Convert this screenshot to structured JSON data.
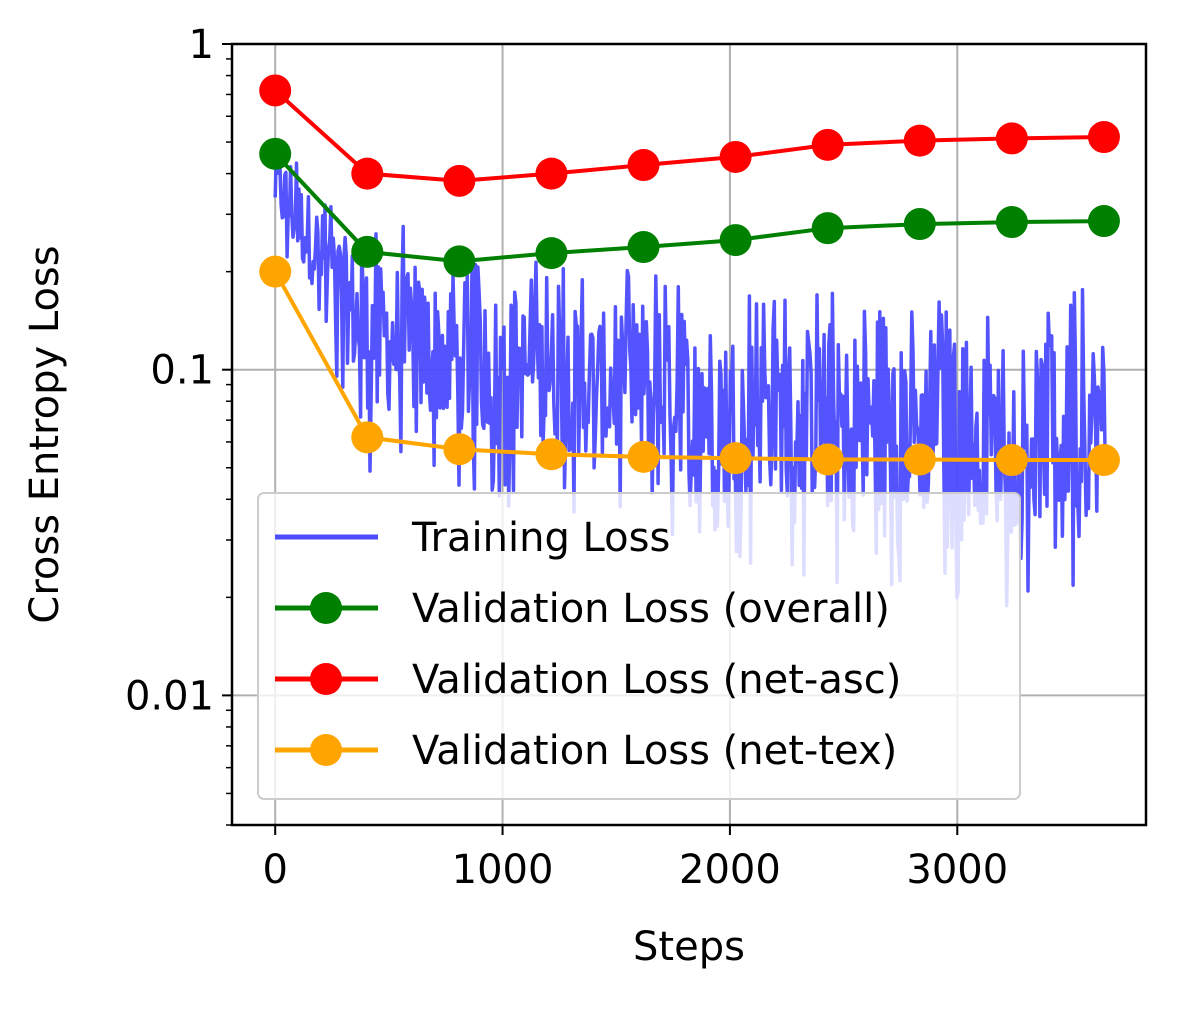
{
  "chart_data": {
    "type": "line",
    "title": "",
    "xlabel": "Steps",
    "ylabel": "Cross Entropy Loss",
    "xlim": [
      -190,
      3830
    ],
    "ylim": [
      0.004,
      1.0
    ],
    "yscale": "log",
    "grid": true,
    "x_ticks": [
      0,
      1000,
      2000,
      3000
    ],
    "x_tick_labels": [
      "0",
      "1000",
      "2000",
      "3000"
    ],
    "y_ticks": [
      1,
      0.1,
      0.01
    ],
    "y_tick_labels": [
      "1",
      "0.1",
      "0.01"
    ],
    "legend_position": "lower-left",
    "colors": {
      "training": "#4b4bff",
      "overall": "#008000",
      "net_asc": "#ff0000",
      "net_tex": "#ffa500",
      "grid": "#b0b0b0"
    },
    "series": [
      {
        "name": "Training Loss",
        "kind": "noise-band",
        "x_range": [
          0,
          3650
        ],
        "approx_band": [
          {
            "x": 0,
            "low": 0.22,
            "high": 0.58
          },
          {
            "x": 200,
            "low": 0.12,
            "high": 0.38
          },
          {
            "x": 400,
            "low": 0.045,
            "high": 0.3
          },
          {
            "x": 800,
            "low": 0.04,
            "high": 0.25
          },
          {
            "x": 1200,
            "low": 0.035,
            "high": 0.22
          },
          {
            "x": 1600,
            "low": 0.03,
            "high": 0.2
          },
          {
            "x": 2000,
            "low": 0.026,
            "high": 0.19
          },
          {
            "x": 2400,
            "low": 0.022,
            "high": 0.18
          },
          {
            "x": 2800,
            "low": 0.02,
            "high": 0.17
          },
          {
            "x": 3200,
            "low": 0.018,
            "high": 0.16
          },
          {
            "x": 3650,
            "low": 0.019,
            "high": 0.2
          }
        ]
      },
      {
        "name": "Validation Loss (overall)",
        "x": [
          0,
          405,
          810,
          1215,
          1620,
          2025,
          2430,
          2835,
          3240,
          3645
        ],
        "values": [
          0.46,
          0.23,
          0.215,
          0.228,
          0.238,
          0.25,
          0.272,
          0.28,
          0.284,
          0.286
        ]
      },
      {
        "name": "Validation Loss (net-asc)",
        "x": [
          0,
          405,
          810,
          1215,
          1620,
          2025,
          2430,
          2835,
          3240,
          3645
        ],
        "values": [
          0.72,
          0.4,
          0.38,
          0.4,
          0.425,
          0.45,
          0.49,
          0.505,
          0.513,
          0.518
        ]
      },
      {
        "name": "Validation Loss (net-tex)",
        "x": [
          0,
          405,
          810,
          1215,
          1620,
          2025,
          2430,
          2835,
          3240,
          3645
        ],
        "values": [
          0.2,
          0.062,
          0.057,
          0.055,
          0.054,
          0.0535,
          0.053,
          0.053,
          0.0528,
          0.0528
        ]
      }
    ]
  }
}
